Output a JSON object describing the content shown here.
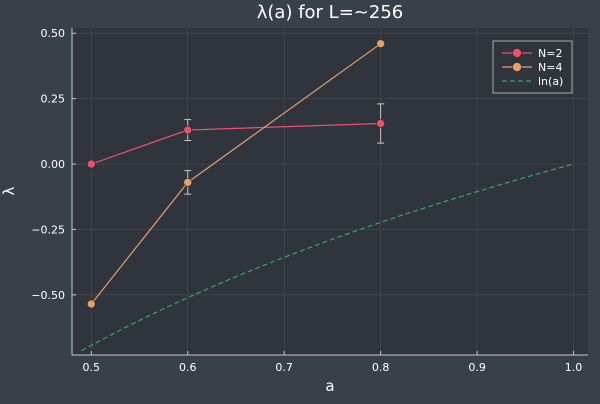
{
  "chart_data": {
    "type": "line",
    "title": "λ(a) for L=~256",
    "xlabel": "a",
    "ylabel": "λ",
    "xlim": [
      0.48,
      1.015
    ],
    "ylim": [
      -0.73,
      0.52
    ],
    "x_ticks": [
      0.5,
      0.6,
      0.7,
      0.8,
      0.9,
      1.0
    ],
    "x_tick_labels": [
      "0.5",
      "0.6",
      "0.7",
      "0.8",
      "0.9",
      "1.0"
    ],
    "y_ticks": [
      -0.5,
      -0.25,
      0.0,
      0.25,
      0.5
    ],
    "y_tick_labels": [
      "−0.50",
      "−0.25",
      "0.00",
      "0.25",
      "0.50"
    ],
    "grid": true,
    "legend_position": "top-right",
    "series": [
      {
        "name": "N=2",
        "color": "#e8526a",
        "marker": "circle",
        "x": [
          0.5,
          0.6,
          0.8
        ],
        "y": [
          0.0,
          0.13,
          0.155
        ],
        "yerr": [
          0.0,
          0.04,
          0.075
        ]
      },
      {
        "name": "N=4",
        "color": "#e3a06b",
        "marker": "circle",
        "x": [
          0.5,
          0.6,
          0.8
        ],
        "y": [
          -0.535,
          -0.07,
          0.46
        ],
        "yerr": [
          0.0,
          0.045,
          0.01
        ]
      },
      {
        "name": "ln(a)",
        "color": "#3aa07a",
        "marker": "none",
        "dash": "dashed",
        "function": "ln",
        "x_range": [
          0.49,
          1.0
        ]
      }
    ]
  },
  "colors": {
    "background": "#3a404a",
    "plot_area": "#30343c",
    "axis": "#c8c8c8",
    "text": "#ffffff",
    "grid": "#4a4f58",
    "errorbar": "#c8c8c8"
  }
}
